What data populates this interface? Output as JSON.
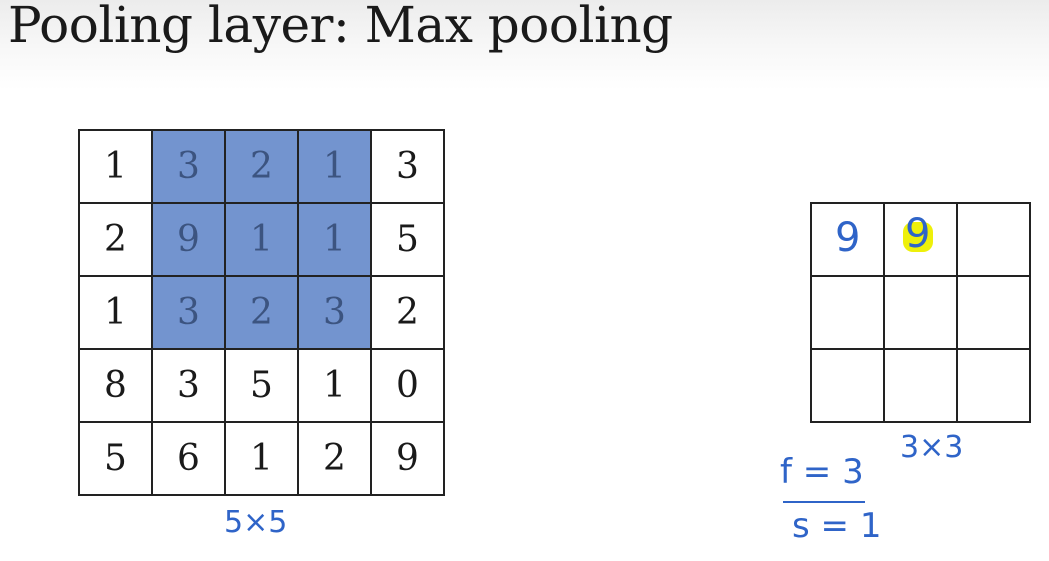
{
  "title": "Pooling layer: Max pooling",
  "input_matrix": {
    "rows": [
      [
        "1",
        "3",
        "2",
        "1",
        "3"
      ],
      [
        "2",
        "9",
        "1",
        "1",
        "5"
      ],
      [
        "1",
        "3",
        "2",
        "3",
        "2"
      ],
      [
        "8",
        "3",
        "5",
        "1",
        "0"
      ],
      [
        "5",
        "6",
        "1",
        "2",
        "9"
      ]
    ],
    "highlight_color": "#7394cf",
    "size_label": "5×5"
  },
  "output_matrix": {
    "rows": [
      [
        "9",
        "9",
        ""
      ],
      [
        "",
        "",
        ""
      ],
      [
        "",
        "",
        ""
      ]
    ],
    "size_label": "3×3"
  },
  "hyperparameters": {
    "filter": "f = 3",
    "stride": "s = 1"
  },
  "colors": {
    "ink": "#2f64c8",
    "highlighter": "#eef00a"
  }
}
